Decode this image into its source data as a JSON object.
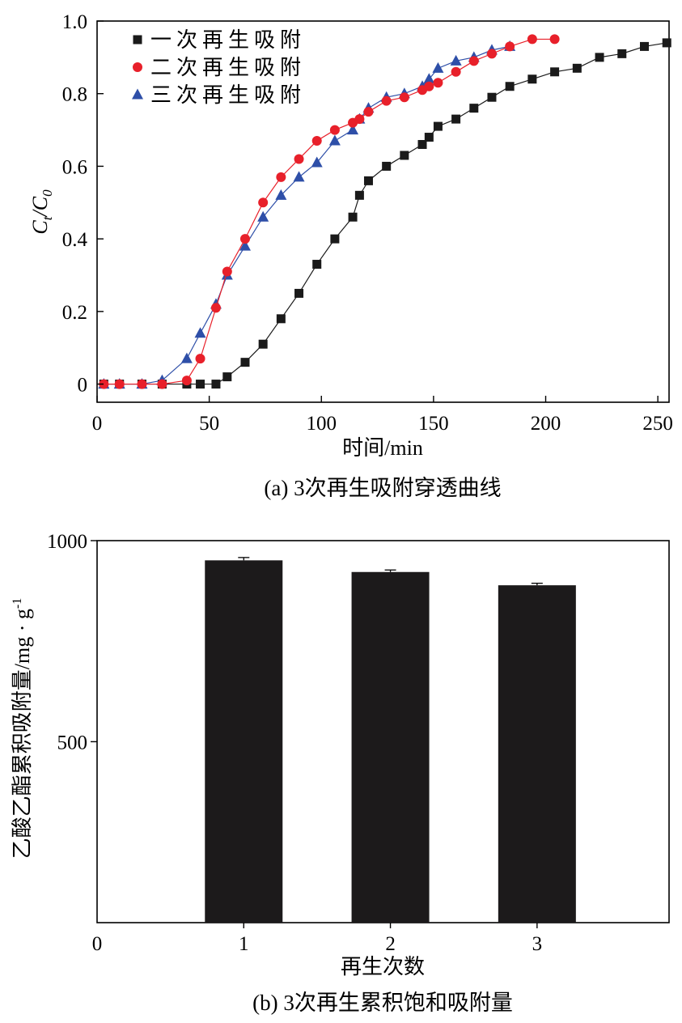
{
  "chart_data": [
    {
      "type": "line",
      "caption": "(a) 3次再生吸附穿透曲线",
      "xlabel": "时间/min",
      "ylabel_main": "C",
      "ylabel_sub1": "t",
      "ylabel_sep": "/C",
      "ylabel_sub2": "0",
      "xlim": [
        0,
        255
      ],
      "ylim": [
        -0.05,
        1.0
      ],
      "xticks": [
        0,
        50,
        100,
        150,
        200,
        250
      ],
      "xtick_labels": [
        "0",
        "50",
        "100",
        "150",
        "200",
        "250"
      ],
      "yticks": [
        0,
        0.2,
        0.4,
        0.6,
        0.8,
        1.0
      ],
      "ytick_labels": [
        "0",
        "0.2",
        "0.4",
        "0.6",
        "0.8",
        "1.0"
      ],
      "legend_position": "top-left",
      "series": [
        {
          "name": "一次再生吸附",
          "marker": "square",
          "color": "#1a1a1a",
          "x": [
            3,
            10,
            20,
            29,
            40,
            46,
            53,
            58,
            66,
            74,
            82,
            90,
            98,
            106,
            114,
            117,
            121,
            129,
            137,
            145,
            148,
            152,
            160,
            168,
            176,
            184,
            194,
            204,
            214,
            224,
            234,
            244,
            254
          ],
          "y": [
            0,
            0,
            0,
            0,
            0,
            0,
            0,
            0.02,
            0.06,
            0.11,
            0.18,
            0.25,
            0.33,
            0.4,
            0.46,
            0.52,
            0.56,
            0.6,
            0.63,
            0.66,
            0.68,
            0.71,
            0.73,
            0.76,
            0.79,
            0.82,
            0.84,
            0.86,
            0.87,
            0.9,
            0.91,
            0.93,
            0.94
          ]
        },
        {
          "name": "二次再生吸附",
          "marker": "circle",
          "color": "#e8202a",
          "x": [
            3,
            10,
            20,
            29,
            40,
            46,
            53,
            58,
            66,
            74,
            82,
            90,
            98,
            106,
            114,
            117,
            121,
            129,
            137,
            145,
            148,
            152,
            160,
            168,
            176,
            184,
            194,
            204
          ],
          "y": [
            0,
            0,
            0,
            0,
            0.01,
            0.07,
            0.21,
            0.31,
            0.4,
            0.5,
            0.57,
            0.62,
            0.67,
            0.7,
            0.72,
            0.73,
            0.75,
            0.78,
            0.79,
            0.81,
            0.82,
            0.83,
            0.86,
            0.89,
            0.91,
            0.93,
            0.95,
            0.95
          ]
        },
        {
          "name": "三次再生吸附",
          "marker": "triangle",
          "color": "#2e4fa8",
          "x": [
            3,
            10,
            20,
            29,
            40,
            46,
            53,
            58,
            66,
            74,
            82,
            90,
            98,
            106,
            114,
            117,
            121,
            129,
            137,
            145,
            148,
            152,
            160,
            168,
            176,
            184
          ],
          "y": [
            0,
            0,
            0,
            0.01,
            0.07,
            0.14,
            0.22,
            0.3,
            0.38,
            0.46,
            0.52,
            0.57,
            0.61,
            0.67,
            0.7,
            0.73,
            0.76,
            0.79,
            0.8,
            0.82,
            0.84,
            0.87,
            0.89,
            0.9,
            0.92,
            0.93
          ]
        }
      ]
    },
    {
      "type": "bar",
      "caption": "(b) 3次再生累积饱和吸附量",
      "xlabel": "再生次数",
      "ylabel": "乙酸乙酯累积吸附量/mg · g",
      "ylabel_sup": "-1",
      "categories": [
        "1",
        "2",
        "3"
      ],
      "category_x": [
        1,
        2,
        3
      ],
      "xlim": [
        0,
        3.9
      ],
      "ylim": [
        50,
        1000
      ],
      "x0_label": "0",
      "yticks": [
        500,
        1000
      ],
      "ytick_labels": [
        "500",
        "1000"
      ],
      "bar_color": "#1c1a1b",
      "series": [
        {
          "values": [
            951,
            922,
            889
          ],
          "errors": [
            7,
            5,
            5
          ]
        }
      ]
    }
  ]
}
